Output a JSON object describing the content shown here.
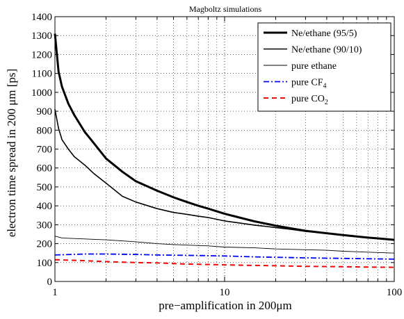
{
  "chart_data": {
    "type": "line",
    "title": "Magboltz simulations",
    "xlabel": "pre−amplification in 200μm",
    "ylabel": "electron time spread in 200 μm [ps]",
    "xscale": "log",
    "xlim": [
      1,
      100
    ],
    "ylim": [
      0,
      1400
    ],
    "grid": true,
    "legend_position": "top-right",
    "x_ticks": [
      {
        "value": 1,
        "label": "1"
      },
      {
        "value": 10,
        "label": "10"
      },
      {
        "value": 100,
        "label": "100"
      }
    ],
    "y_ticks": [
      0,
      100,
      200,
      300,
      400,
      500,
      600,
      700,
      800,
      900,
      1000,
      1100,
      1200,
      1300,
      1400
    ],
    "series": [
      {
        "name": "Ne/ethane (95/5)",
        "color": "#000000",
        "width": 3,
        "dash": "",
        "points": [
          [
            1,
            1310
          ],
          [
            1.05,
            1110
          ],
          [
            1.1,
            1030
          ],
          [
            1.2,
            940
          ],
          [
            1.3,
            880
          ],
          [
            1.5,
            790
          ],
          [
            1.7,
            730
          ],
          [
            2,
            650
          ],
          [
            2.5,
            580
          ],
          [
            3,
            530
          ],
          [
            4,
            480
          ],
          [
            5,
            445
          ],
          [
            6,
            420
          ],
          [
            7,
            400
          ],
          [
            8,
            385
          ],
          [
            10,
            358
          ],
          [
            12,
            340
          ],
          [
            15,
            318
          ],
          [
            20,
            295
          ],
          [
            25,
            280
          ],
          [
            30,
            268
          ],
          [
            40,
            255
          ],
          [
            50,
            245
          ],
          [
            60,
            238
          ],
          [
            70,
            232
          ],
          [
            80,
            228
          ],
          [
            100,
            220
          ]
        ]
      },
      {
        "name": "Ne/ethane  (90/10)",
        "legend_name": "Ne/ethane  (90/10)",
        "color": "#000000",
        "width": 1.6,
        "dash": "",
        "points": [
          [
            1,
            910
          ],
          [
            1.05,
            810
          ],
          [
            1.1,
            750
          ],
          [
            1.2,
            700
          ],
          [
            1.3,
            660
          ],
          [
            1.5,
            615
          ],
          [
            1.7,
            570
          ],
          [
            2,
            520
          ],
          [
            2.5,
            450
          ],
          [
            3,
            420
          ],
          [
            4,
            385
          ],
          [
            5,
            365
          ],
          [
            6,
            355
          ],
          [
            7,
            345
          ],
          [
            8,
            338
          ],
          [
            10,
            320
          ],
          [
            12,
            310
          ],
          [
            15,
            298
          ],
          [
            20,
            285
          ],
          [
            25,
            275
          ],
          [
            30,
            265
          ],
          [
            40,
            255
          ],
          [
            50,
            245
          ],
          [
            60,
            238
          ],
          [
            70,
            232
          ],
          [
            80,
            228
          ],
          [
            100,
            222
          ]
        ]
      },
      {
        "name": "pure ethane",
        "color": "#000000",
        "width": 0.9,
        "dash": "",
        "points": [
          [
            1,
            240
          ],
          [
            1.1,
            230
          ],
          [
            1.5,
            225
          ],
          [
            2,
            220
          ],
          [
            3,
            210
          ],
          [
            4,
            200
          ],
          [
            5,
            195
          ],
          [
            6,
            192
          ],
          [
            8,
            188
          ],
          [
            10,
            182
          ],
          [
            15,
            178
          ],
          [
            20,
            172
          ],
          [
            30,
            168
          ],
          [
            40,
            165
          ],
          [
            50,
            160
          ],
          [
            70,
            155
          ],
          [
            100,
            150
          ]
        ]
      },
      {
        "name": "pure CF4",
        "color": "#0000ff",
        "width": 1.8,
        "dash": "8,3,2,3",
        "points": [
          [
            1,
            140
          ],
          [
            1.5,
            145
          ],
          [
            2,
            145
          ],
          [
            3,
            143
          ],
          [
            4,
            140
          ],
          [
            6,
            138
          ],
          [
            10,
            135
          ],
          [
            15,
            130
          ],
          [
            20,
            128
          ],
          [
            30,
            125
          ],
          [
            50,
            122
          ],
          [
            70,
            120
          ],
          [
            100,
            118
          ]
        ]
      },
      {
        "name": "pure CO2",
        "color": "#ff0000",
        "width": 2,
        "dash": "7,5",
        "points": [
          [
            1,
            115
          ],
          [
            1.5,
            110
          ],
          [
            2,
            105
          ],
          [
            3,
            100
          ],
          [
            4,
            98
          ],
          [
            6,
            92
          ],
          [
            10,
            88
          ],
          [
            15,
            85
          ],
          [
            20,
            83
          ],
          [
            30,
            80
          ],
          [
            50,
            78
          ],
          [
            70,
            76
          ],
          [
            100,
            75
          ]
        ]
      }
    ],
    "legend_entries": [
      {
        "text": "Ne/ethane (95/5)",
        "sub": ""
      },
      {
        "text": "Ne/ethane  (90/10)",
        "sub": ""
      },
      {
        "text": "pure ethane",
        "sub": ""
      },
      {
        "text": "pure CF",
        "sub": "4"
      },
      {
        "text": "pure CO",
        "sub": "2"
      }
    ]
  }
}
